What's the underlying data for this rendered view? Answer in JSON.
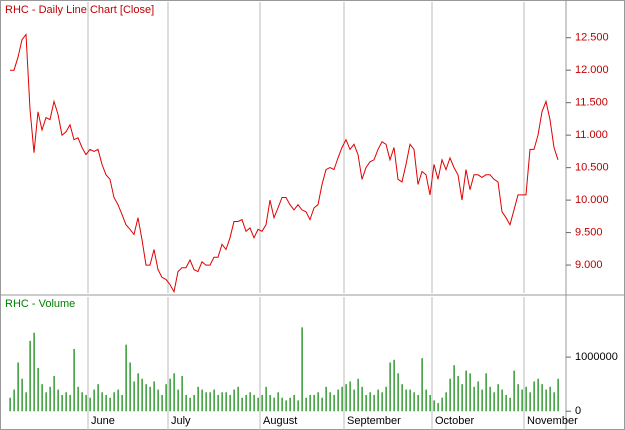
{
  "chart_data": [
    {
      "type": "line",
      "title": "RHC - Daily Line Chart [Close]",
      "color": "#e00000",
      "title_color": "#c00000",
      "axis_label_color": "#c00000",
      "ylim": [
        8.57,
        13.05
      ],
      "yticks": [
        {
          "value": 9,
          "label": "9.000"
        },
        {
          "value": 9.5,
          "label": "9.500"
        },
        {
          "value": 10,
          "label": "10.000"
        },
        {
          "value": 10.5,
          "label": "10.500"
        },
        {
          "value": 11,
          "label": "11.000"
        },
        {
          "value": 11.5,
          "label": "11.500"
        },
        {
          "value": 12,
          "label": "12.000"
        },
        {
          "value": 12.5,
          "label": "12.500"
        }
      ],
      "values": [
        12.0,
        12.0,
        12.2,
        12.47,
        12.55,
        11.4,
        10.73,
        11.36,
        11.08,
        11.27,
        11.24,
        11.52,
        11.32,
        11.0,
        11.05,
        11.16,
        10.93,
        10.96,
        10.81,
        10.7,
        10.78,
        10.75,
        10.78,
        10.55,
        10.39,
        10.32,
        10.04,
        9.93,
        9.78,
        9.62,
        9.55,
        9.47,
        9.73,
        9.39,
        9.0,
        9.0,
        9.24,
        8.93,
        8.81,
        8.78,
        8.7,
        8.59,
        8.9,
        8.96,
        8.96,
        9.08,
        8.93,
        8.9,
        9.05,
        9.0,
        9.0,
        9.12,
        9.12,
        9.32,
        9.24,
        9.42,
        9.67,
        9.67,
        9.7,
        9.52,
        9.57,
        9.42,
        9.55,
        9.52,
        9.62,
        10.0,
        9.73,
        9.88,
        10.04,
        10.04,
        9.93,
        9.85,
        9.93,
        9.85,
        9.82,
        9.7,
        9.88,
        9.93,
        10.24,
        10.47,
        10.5,
        10.47,
        10.65,
        10.81,
        10.93,
        10.78,
        10.86,
        10.7,
        10.32,
        10.5,
        10.59,
        10.62,
        10.78,
        10.9,
        10.86,
        10.62,
        10.81,
        10.32,
        10.28,
        10.55,
        10.86,
        10.78,
        10.24,
        10.44,
        10.39,
        10.08,
        10.55,
        10.32,
        10.62,
        10.47,
        10.65,
        10.5,
        10.39,
        10.0,
        10.47,
        10.16,
        10.39,
        10.39,
        10.35,
        10.39,
        10.39,
        10.32,
        10.28,
        9.82,
        9.73,
        9.62,
        9.85,
        10.08,
        10.08,
        10.08,
        10.78,
        10.78,
        11.0,
        11.36,
        11.52,
        11.24,
        10.81,
        10.62
      ]
    },
    {
      "type": "bar",
      "title": "RHC - Volume",
      "color": "#008000",
      "title_color": "#008000",
      "axis_label_color": "#000000",
      "ylim": [
        -310000,
        2110000
      ],
      "yticks": [
        0,
        1000000
      ],
      "categories": [
        null,
        null,
        null,
        null,
        null,
        null,
        null,
        null,
        null,
        null,
        null,
        null,
        null,
        null,
        null,
        null,
        null,
        null,
        null,
        null,
        "June",
        null,
        null,
        null,
        null,
        null,
        null,
        null,
        null,
        null,
        null,
        null,
        null,
        null,
        null,
        null,
        null,
        null,
        null,
        null,
        "July",
        null,
        null,
        null,
        null,
        null,
        null,
        null,
        null,
        null,
        null,
        null,
        null,
        null,
        null,
        null,
        null,
        null,
        null,
        null,
        null,
        null,
        null,
        "August",
        null,
        null,
        null,
        null,
        null,
        null,
        null,
        null,
        null,
        null,
        null,
        null,
        null,
        null,
        null,
        null,
        null,
        null,
        null,
        null,
        "September",
        null,
        null,
        null,
        null,
        null,
        null,
        null,
        null,
        null,
        null,
        null,
        null,
        null,
        null,
        null,
        null,
        null,
        null,
        null,
        null,
        null,
        "October",
        null,
        null,
        null,
        null,
        null,
        null,
        null,
        null,
        null,
        null,
        null,
        null,
        null,
        null,
        null,
        null,
        null,
        null,
        null,
        null,
        null,
        null,
        "November",
        null,
        null,
        null,
        null,
        null,
        null,
        null,
        null
      ],
      "values": [
        250000,
        400000,
        900000,
        600000,
        350000,
        1300000,
        1450000,
        800000,
        500000,
        350000,
        450000,
        650000,
        400000,
        300000,
        350000,
        300000,
        1150000,
        450000,
        350000,
        300000,
        250000,
        400000,
        500000,
        350000,
        300000,
        250000,
        350000,
        400000,
        300000,
        1230000,
        900000,
        550000,
        700000,
        600000,
        500000,
        450000,
        550000,
        400000,
        300000,
        500000,
        600000,
        700000,
        400000,
        650000,
        300000,
        250000,
        300000,
        450000,
        400000,
        350000,
        350000,
        400000,
        300000,
        350000,
        350000,
        300000,
        400000,
        450000,
        250000,
        300000,
        350000,
        300000,
        250000,
        300000,
        450000,
        300000,
        250000,
        350000,
        250000,
        200000,
        250000,
        300000,
        200000,
        1550000,
        250000,
        300000,
        300000,
        350000,
        250000,
        450000,
        350000,
        300000,
        400000,
        450000,
        500000,
        550000,
        400000,
        600000,
        450000,
        300000,
        350000,
        300000,
        400000,
        350000,
        450000,
        900000,
        950000,
        700000,
        500000,
        400000,
        400000,
        350000,
        300000,
        980000,
        400000,
        300000,
        200000,
        150000,
        250000,
        350000,
        600000,
        850000,
        650000,
        500000,
        750000,
        700000,
        450000,
        550000,
        400000,
        700000,
        450000,
        350000,
        500000,
        400000,
        300000,
        250000,
        750000,
        500000,
        400000,
        450000,
        350000,
        550000,
        600000,
        500000,
        400000,
        450000,
        350000,
        600000
      ]
    }
  ]
}
